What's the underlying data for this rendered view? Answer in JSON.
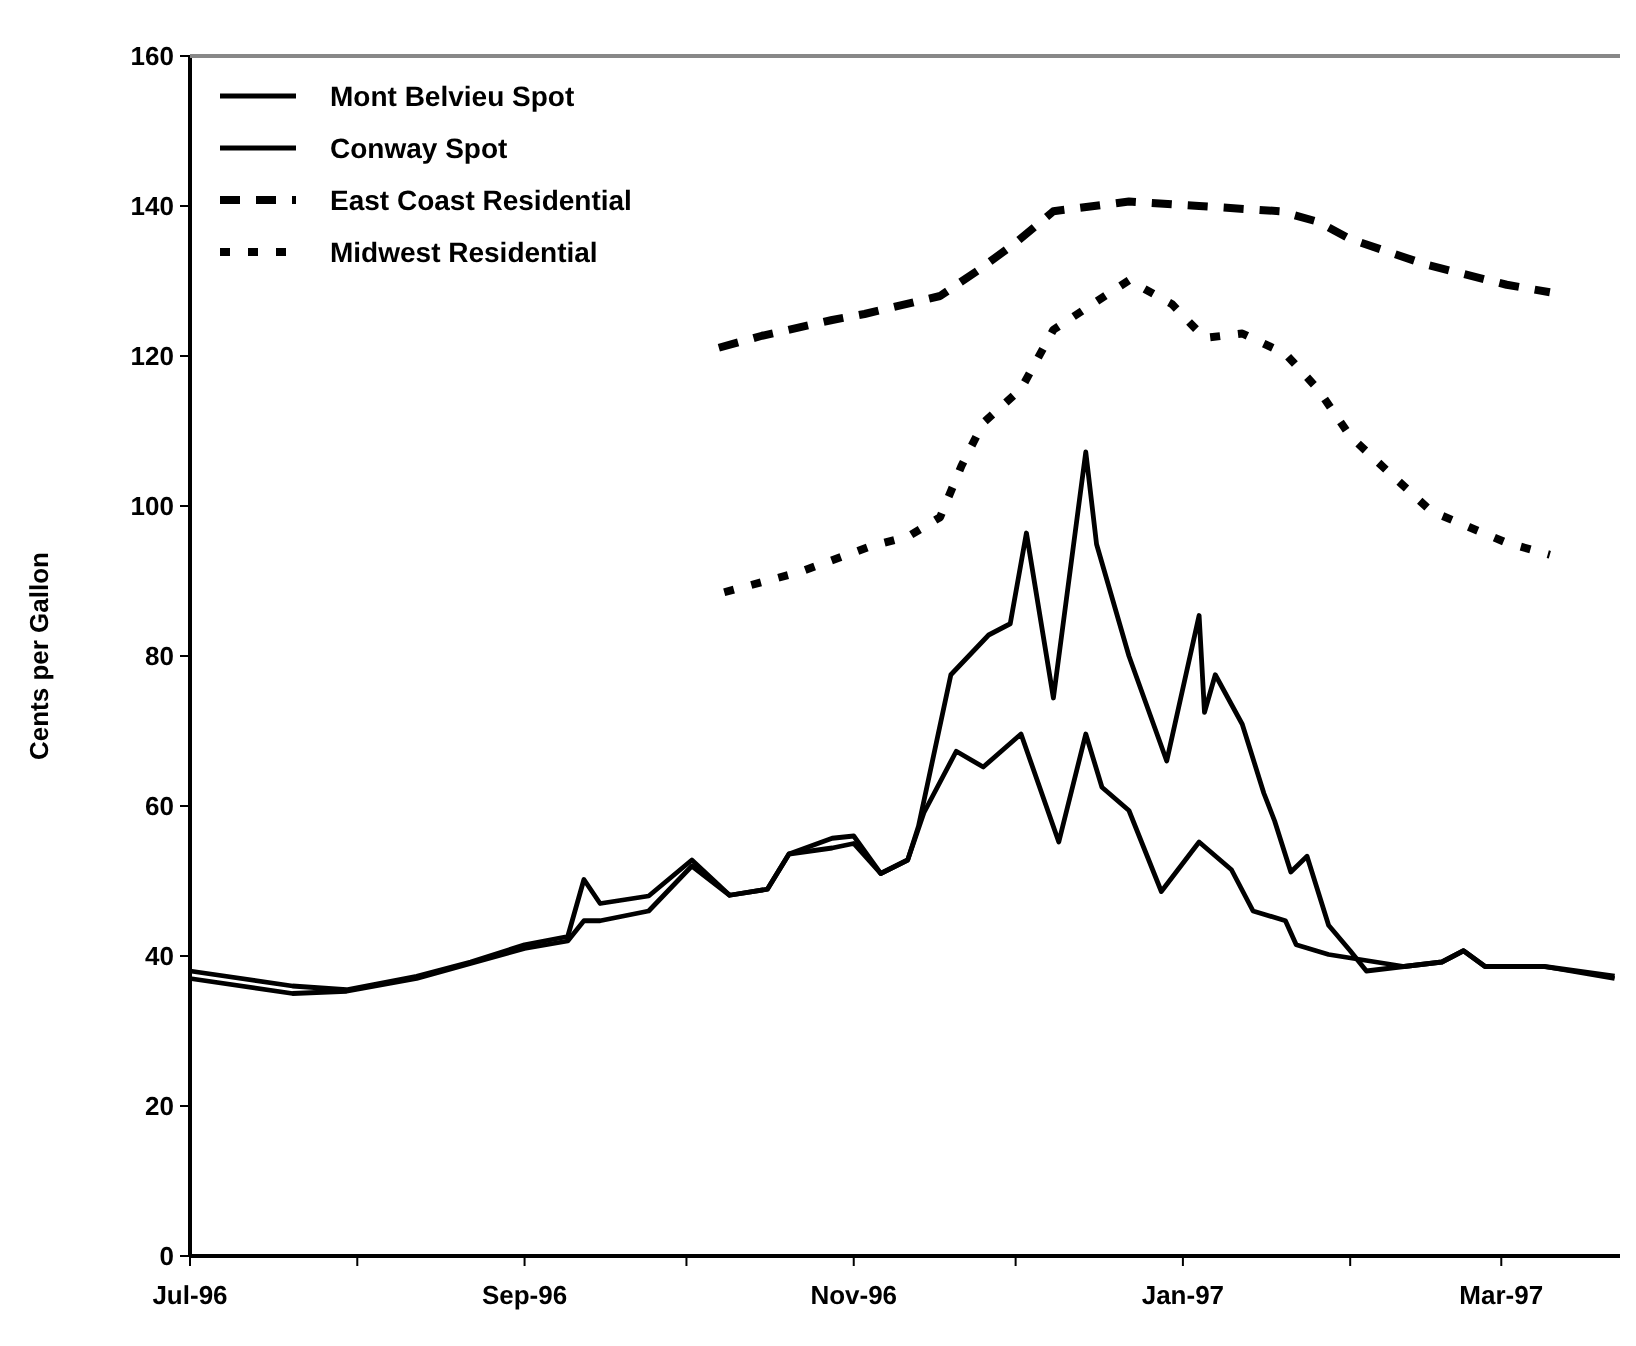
{
  "chart_data": {
    "type": "line",
    "ylabel": "Cents per Gallon",
    "xlim": [
      "1996-07-01",
      "1997-03-23"
    ],
    "ylim": [
      0,
      160
    ],
    "xticks": [
      {
        "value": "1996-07-01",
        "label": "Jul-96"
      },
      {
        "value": "1996-08-01",
        "label": null
      },
      {
        "value": "1996-09-01",
        "label": "Sep-96"
      },
      {
        "value": "1996-10-01",
        "label": null
      },
      {
        "value": "1996-11-01",
        "label": "Nov-96"
      },
      {
        "value": "1996-12-01",
        "label": null
      },
      {
        "value": "1997-01-01",
        "label": "Jan-97"
      },
      {
        "value": "1997-02-01",
        "label": null
      },
      {
        "value": "1997-03-01",
        "label": "Mar-97"
      }
    ],
    "yticks": [
      0,
      20,
      40,
      60,
      80,
      100,
      120,
      140,
      160
    ],
    "grid": false,
    "legend": "top left",
    "marker": "none",
    "series": [
      {
        "name": "Mont Belvieu Spot",
        "color": "#000000",
        "line_style": "solid",
        "x": [
          "1996-07-01",
          "1996-07-20",
          "1996-07-30",
          "1996-08-12",
          "1996-08-22",
          "1996-09-01",
          "1996-09-09",
          "1996-09-12",
          "1996-09-15",
          "1996-09-24",
          "1996-10-02",
          "1996-10-09",
          "1996-10-16",
          "1996-10-20",
          "1996-10-28",
          "1996-11-01",
          "1996-11-06",
          "1996-11-11",
          "1996-11-14",
          "1996-11-20",
          "1996-11-25",
          "1996-12-02",
          "1996-12-09",
          "1996-12-14",
          "1996-12-17",
          "1996-12-22",
          "1996-12-28",
          "1997-01-04",
          "1997-01-10",
          "1997-01-14",
          "1997-01-20",
          "1997-01-22",
          "1997-01-28",
          "1997-02-04",
          "1997-02-11",
          "1997-02-18",
          "1997-02-22",
          "1997-02-26",
          "1997-03-09",
          "1997-03-22"
        ],
        "values": [
          37,
          35,
          35.3,
          37,
          39,
          41,
          42,
          44.7,
          44.7,
          46,
          52,
          48.1,
          48.9,
          53.6,
          54.4,
          55,
          51,
          52.8,
          59.1,
          67.3,
          65.2,
          69.6,
          55.2,
          69.6,
          62.5,
          59.4,
          48.6,
          55.2,
          51.5,
          46,
          44.7,
          41.5,
          40.2,
          39.4,
          38.6,
          39.2,
          40.7,
          38.6,
          38.6,
          37
        ]
      },
      {
        "name": "Conway Spot",
        "color": "#000000",
        "line_style": "solid",
        "x": [
          "1996-07-01",
          "1996-07-20",
          "1996-07-30",
          "1996-08-12",
          "1996-08-22",
          "1996-09-01",
          "1996-09-09",
          "1996-09-12",
          "1996-09-15",
          "1996-09-24",
          "1996-10-02",
          "1996-10-09",
          "1996-10-16",
          "1996-10-20",
          "1996-10-28",
          "1996-11-01",
          "1996-11-06",
          "1996-11-11",
          "1996-11-13",
          "1996-11-19",
          "1996-11-26",
          "1996-11-30",
          "1996-12-03",
          "1996-12-08",
          "1996-12-14",
          "1996-12-16",
          "1996-12-22",
          "1996-12-29",
          "1997-01-04",
          "1997-01-05",
          "1997-01-07",
          "1997-01-12",
          "1997-01-16",
          "1997-01-18",
          "1997-01-21",
          "1997-01-24",
          "1997-01-28",
          "1997-02-01",
          "1997-02-04",
          "1997-02-11",
          "1997-02-18",
          "1997-02-22",
          "1997-02-26",
          "1997-03-09",
          "1997-03-22"
        ],
        "values": [
          38,
          36,
          35.5,
          37.3,
          39.2,
          41.5,
          42.6,
          50.2,
          47,
          48,
          52.8,
          48.1,
          48.9,
          53.6,
          55.7,
          56,
          51,
          52.8,
          57.3,
          77.5,
          82.8,
          84.3,
          96.4,
          74.4,
          107.2,
          94.9,
          80,
          66,
          85.4,
          72.5,
          77.5,
          70.9,
          61.7,
          58,
          51.2,
          53.3,
          44.1,
          40.7,
          38,
          38.6,
          39.2,
          40.7,
          38.6,
          38.6,
          37.3
        ]
      },
      {
        "name": "East Coast Residential",
        "color": "#000000",
        "line_style": "dashed",
        "x": [
          "1996-10-07",
          "1996-10-15",
          "1996-10-28",
          "1996-11-03",
          "1996-11-17",
          "1996-11-24",
          "1996-12-01",
          "1996-12-08",
          "1996-12-22",
          "1997-01-04",
          "1997-01-19",
          "1997-01-26",
          "1997-02-01",
          "1997-02-15",
          "1997-03-02",
          "1997-03-10"
        ],
        "values": [
          121.1,
          122.7,
          124.8,
          125.6,
          128,
          131.4,
          135.1,
          139.3,
          140.6,
          140,
          139.3,
          137.9,
          135.6,
          132.2,
          129.5,
          128.5
        ]
      },
      {
        "name": "Midwest Residential",
        "color": "#000000",
        "line_style": "dotted",
        "x": [
          "1996-10-08",
          "1996-10-22",
          "1996-11-04",
          "1996-11-11",
          "1996-11-17",
          "1996-11-21",
          "1996-11-25",
          "1996-12-02",
          "1996-12-08",
          "1996-12-22",
          "1996-12-30",
          "1997-01-05",
          "1997-01-12",
          "1997-01-20",
          "1997-01-26",
          "1997-02-01",
          "1997-02-08",
          "1997-02-16",
          "1997-02-23",
          "1997-03-02",
          "1997-03-10"
        ],
        "values": [
          88.5,
          91.2,
          94.6,
          95.9,
          98.5,
          105.4,
          111.1,
          115.6,
          123.5,
          130.1,
          126.9,
          122.4,
          123,
          120.3,
          115.6,
          109.3,
          104.6,
          99.3,
          97.2,
          95.1,
          93.5
        ]
      }
    ]
  }
}
